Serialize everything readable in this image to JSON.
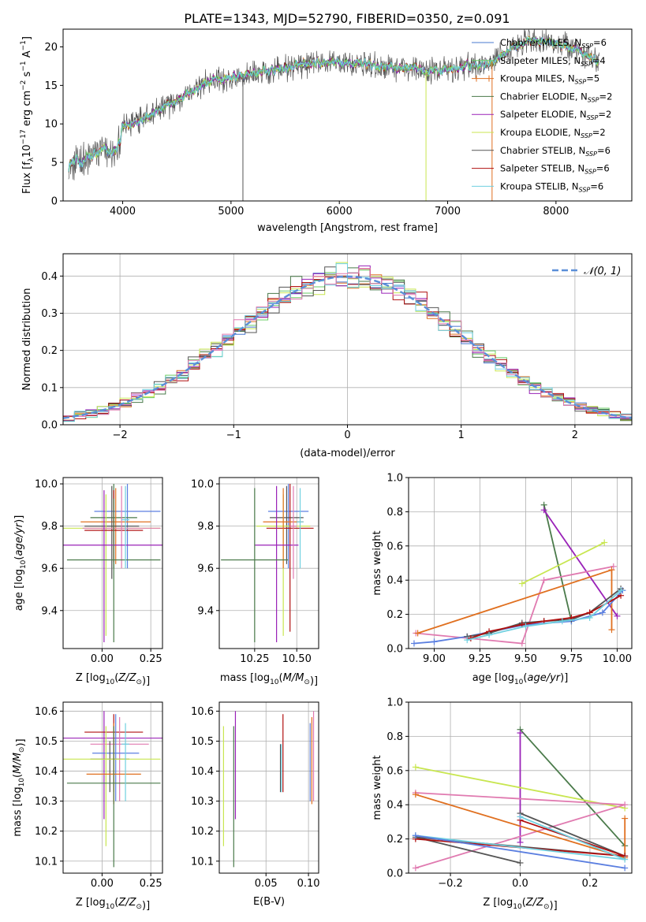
{
  "title": "PLATE=1343, MJD=52790, FIBERID=0350, z=0.091",
  "colors": {
    "chabrier_miles": "#4878cf",
    "salpeter_miles": "#6acc65",
    "kroupa_miles": "#e07020",
    "chabrier_elodie": "#4a7a4a",
    "salpeter_elodie": "#9a22b8",
    "kroupa_elodie": "#c8e650",
    "chabrier_stelib": "#555555",
    "salpeter_stelib": "#b01010",
    "kroupa_stelib": "#6fd0e0",
    "pink": "#e07ab0",
    "blue": "#5b7fe0",
    "normal_curve": "#5b8fd8",
    "grid": "#b0b0b0"
  },
  "chart_data": [
    {
      "id": "spectrum",
      "type": "line",
      "xlabel": "wavelength [Angstrom, rest frame]",
      "ylabel": "Flux [f_λ10^-17 erg cm^-2 s^-1 A^-1]",
      "xlim": [
        3450,
        8700
      ],
      "ylim": [
        0,
        22.3
      ],
      "xticks": [
        4000,
        5000,
        6000,
        7000,
        8000
      ],
      "yticks": [
        0,
        5,
        10,
        15,
        20
      ],
      "grid": false,
      "legend_position": "upper-right",
      "legend": [
        {
          "name": "Chabrier MILES, N",
          "sub": "SSP",
          "suffix": "=6",
          "color": "#4878cf"
        },
        {
          "name": "Salpeter MILES, N",
          "sub": "SSP",
          "suffix": "=4",
          "color": "#6acc65"
        },
        {
          "name": "Kroupa MILES, N",
          "sub": "SSP",
          "suffix": "=5",
          "color": "#e07020"
        },
        {
          "name": "Chabrier ELODIE, N",
          "sub": "SSP",
          "suffix": "=2",
          "color": "#4a7a4a"
        },
        {
          "name": "Salpeter ELODIE, N",
          "sub": "SSP",
          "suffix": "=2",
          "color": "#9a22b8"
        },
        {
          "name": "Kroupa ELODIE, N",
          "sub": "SSP",
          "suffix": "=2",
          "color": "#c8e650"
        },
        {
          "name": "Chabrier STELIB, N",
          "sub": "SSP",
          "suffix": "=6",
          "color": "#555555"
        },
        {
          "name": "Salpeter STELIB, N",
          "sub": "SSP",
          "suffix": "=6",
          "color": "#b01010"
        },
        {
          "name": "Kroupa STELIB, N",
          "sub": "SSP",
          "suffix": "=6",
          "color": "#6fd0e0"
        }
      ],
      "continuum": {
        "x": [
          3500,
          3600,
          3700,
          3800,
          3900,
          3950,
          4000,
          4100,
          4200,
          4300,
          4400,
          4500,
          4600,
          4800,
          5000,
          5200,
          5400,
          5600,
          5800,
          6000,
          6200,
          6400,
          6600,
          6800,
          7000,
          7200,
          7400,
          7600,
          7800,
          8000,
          8200,
          8400
        ],
        "y": [
          4.8,
          5.2,
          5.5,
          6.5,
          6.2,
          6.5,
          9.5,
          10.0,
          11.0,
          11.5,
          12.2,
          13.0,
          14.0,
          15.5,
          16.0,
          16.5,
          17.0,
          17.5,
          17.8,
          18.0,
          17.8,
          17.5,
          17.2,
          17.0,
          17.0,
          17.5,
          18.0,
          20.0,
          21.0,
          20.5,
          19.5,
          18.0
        ]
      },
      "absorption_spikes": [
        {
          "x": 5110,
          "y": 0
        },
        {
          "x": 6800,
          "y": 0
        },
        {
          "x": 7410,
          "y": 0
        }
      ]
    },
    {
      "id": "residuals",
      "type": "step",
      "xlabel": "(data-model)/error",
      "ylabel": "Normed distribution",
      "xlim": [
        -2.5,
        2.5
      ],
      "ylim": [
        0,
        0.46
      ],
      "xticks": [
        -2,
        -1,
        0,
        1,
        2
      ],
      "yticks": [
        0.0,
        0.1,
        0.2,
        0.3,
        0.4
      ],
      "grid": true,
      "legend": [
        {
          "name": "𝒩(0, 1)",
          "style": "dashed",
          "color": "#5b8fd8"
        }
      ],
      "legend_position": "upper-right",
      "bin_width": 0.1,
      "normal_pdf": {
        "mean": 0,
        "sigma": 1
      }
    },
    {
      "id": "z_age",
      "type": "errorbar",
      "xlabel": "Z [log10(Z/Z⊙)]",
      "ylabel": "age [log10(age/yr)]",
      "xlim": [
        -0.2,
        0.31
      ],
      "ylim": [
        9.22,
        10.03
      ],
      "xticks": [
        0.0,
        0.25
      ],
      "yticks": [
        9.4,
        9.6,
        9.8,
        10.0
      ],
      "grid": true,
      "points": [
        {
          "x": 0.13,
          "xerr": 0.17,
          "y": 9.87,
          "ylo": 9.6,
          "yhi": 10.0,
          "color": "#5b7fe0"
        },
        {
          "x": 0.06,
          "xerr": 0.12,
          "y": 9.84,
          "ylo": 9.6,
          "yhi": 10.0,
          "color": "#4a7a4a"
        },
        {
          "x": 0.07,
          "xerr": 0.18,
          "y": 9.82,
          "ylo": 9.62,
          "yhi": 9.98,
          "color": "#e07020"
        },
        {
          "x": 0.05,
          "xerr": 0.14,
          "y": 9.8,
          "ylo": 9.55,
          "yhi": 9.99,
          "color": "#555555"
        },
        {
          "x": 0.02,
          "xerr": 0.28,
          "y": 9.79,
          "ylo": 9.28,
          "yhi": 9.95,
          "color": "#c8e650"
        },
        {
          "x": 0.06,
          "xerr": 0.15,
          "y": 9.78,
          "ylo": 9.63,
          "yhi": 9.97,
          "color": "#b01010"
        },
        {
          "x": 0.1,
          "xerr": 0.2,
          "y": 9.79,
          "ylo": 9.6,
          "yhi": 9.99,
          "color": "#e07ab0"
        },
        {
          "x": 0.01,
          "xerr": 0.3,
          "y": 9.71,
          "ylo": 9.25,
          "yhi": 9.97,
          "color": "#9a22b8"
        },
        {
          "x": 0.06,
          "xerr": 0.24,
          "y": 9.64,
          "ylo": 9.25,
          "yhi": 9.93,
          "color": "#4a7a4a"
        },
        {
          "x": 0.12,
          "xerr": 0.02,
          "y": 9.83,
          "ylo": 9.6,
          "yhi": 9.99,
          "color": "#6fd0e0"
        }
      ]
    },
    {
      "id": "mass_age",
      "type": "errorbar",
      "xlabel": "mass [log10(M/M⊙)]",
      "ylabel": "",
      "xlim": [
        10.04,
        10.63
      ],
      "ylim": [
        9.22,
        10.03
      ],
      "xticks": [
        10.25,
        10.5
      ],
      "yticks": [
        9.4,
        9.6,
        9.8,
        10.0
      ],
      "grid": true,
      "points": [
        {
          "x": 10.45,
          "xerr": 0.12,
          "y": 9.87,
          "ylo": 9.6,
          "yhi": 10.0,
          "color": "#5b7fe0"
        },
        {
          "x": 10.44,
          "xerr": 0.1,
          "y": 9.84,
          "ylo": 9.62,
          "yhi": 9.99,
          "color": "#555555"
        },
        {
          "x": 10.42,
          "xerr": 0.16,
          "y": 9.8,
          "ylo": 9.28,
          "yhi": 9.95,
          "color": "#c8e650"
        },
        {
          "x": 10.46,
          "xerr": 0.14,
          "y": 9.79,
          "ylo": 9.3,
          "yhi": 10.0,
          "color": "#b01010"
        },
        {
          "x": 10.42,
          "xerr": 0.12,
          "y": 9.82,
          "ylo": 9.6,
          "yhi": 9.98,
          "color": "#e07020"
        },
        {
          "x": 10.38,
          "xerr": 0.13,
          "y": 9.71,
          "ylo": 9.25,
          "yhi": 9.99,
          "color": "#9a22b8"
        },
        {
          "x": 10.25,
          "xerr": 0.2,
          "y": 9.64,
          "ylo": 9.25,
          "yhi": 9.98,
          "color": "#4a7a4a"
        },
        {
          "x": 10.48,
          "xerr": 0.02,
          "y": 9.8,
          "ylo": 9.55,
          "yhi": 9.99,
          "color": "#e07ab0"
        },
        {
          "x": 10.52,
          "xerr": 0.02,
          "y": 9.82,
          "ylo": 9.6,
          "yhi": 9.98,
          "color": "#6fd0e0"
        }
      ]
    },
    {
      "id": "age_weight",
      "type": "line",
      "xlabel": "age [log10(age/yr)]",
      "ylabel": "mass weight",
      "xlim": [
        8.86,
        10.08
      ],
      "ylim": [
        0,
        1.0
      ],
      "xticks": [
        9.0,
        9.25,
        9.5,
        9.75,
        10.0
      ],
      "yticks": [
        0.0,
        0.2,
        0.4,
        0.6,
        0.8,
        1.0
      ],
      "grid": true,
      "series": [
        {
          "color": "#4a7a4a",
          "x": [
            9.6,
            9.75
          ],
          "y": [
            0.84,
            0.16
          ]
        },
        {
          "color": "#9a22b8",
          "x": [
            9.6,
            10.0
          ],
          "y": [
            0.81,
            0.19
          ]
        },
        {
          "color": "#c8e650",
          "x": [
            9.48,
            9.93
          ],
          "y": [
            0.38,
            0.62
          ]
        },
        {
          "color": "#e07ab0",
          "x": [
            8.9,
            9.48,
            9.6,
            9.98
          ],
          "y": [
            0.09,
            0.03,
            0.4,
            0.48
          ]
        },
        {
          "color": "#e07020",
          "x": [
            8.91,
            9.97,
            9.97
          ],
          "y": [
            0.09,
            0.46,
            0.11
          ]
        },
        {
          "color": "#5b7fe0",
          "x": [
            8.89,
            9.0,
            9.18,
            9.5,
            9.75,
            9.92,
            10.03
          ],
          "y": [
            0.03,
            0.04,
            0.07,
            0.14,
            0.16,
            0.21,
            0.34
          ]
        },
        {
          "color": "#555555",
          "x": [
            9.18,
            9.3,
            9.48,
            9.6,
            9.75,
            9.85,
            10.02
          ],
          "y": [
            0.07,
            0.09,
            0.15,
            0.16,
            0.17,
            0.21,
            0.35
          ]
        },
        {
          "color": "#b01010",
          "x": [
            9.2,
            9.3,
            9.48,
            9.6,
            9.75,
            9.85,
            10.02
          ],
          "y": [
            0.06,
            0.1,
            0.14,
            0.16,
            0.18,
            0.21,
            0.31
          ]
        },
        {
          "color": "#6fd0e0",
          "x": [
            9.18,
            9.3,
            9.5,
            9.7,
            9.85,
            10.02
          ],
          "y": [
            0.05,
            0.08,
            0.13,
            0.16,
            0.18,
            0.34
          ]
        }
      ]
    },
    {
      "id": "z_mass",
      "type": "errorbar",
      "xlabel": "Z [log10(Z/Z⊙)]",
      "ylabel": "mass [log10(M/M⊙)]",
      "xlim": [
        -0.2,
        0.31
      ],
      "ylim": [
        10.06,
        10.63
      ],
      "xticks": [
        0.0,
        0.25
      ],
      "yticks": [
        10.1,
        10.2,
        10.3,
        10.4,
        10.5,
        10.6
      ],
      "grid": true,
      "points": [
        {
          "x": 0.01,
          "xerr": 0.3,
          "y": 10.51,
          "ylo": 10.24,
          "yhi": 10.6,
          "color": "#9a22b8"
        },
        {
          "x": 0.06,
          "xerr": 0.15,
          "y": 10.53,
          "ylo": 10.33,
          "yhi": 10.59,
          "color": "#b01010"
        },
        {
          "x": 0.09,
          "xerr": 0.15,
          "y": 10.49,
          "ylo": 10.3,
          "yhi": 10.58,
          "color": "#e07ab0"
        },
        {
          "x": 0.07,
          "xerr": 0.12,
          "y": 10.46,
          "ylo": 10.3,
          "yhi": 10.59,
          "color": "#5b7fe0"
        },
        {
          "x": 0.04,
          "xerr": 0.1,
          "y": 10.44,
          "ylo": 10.33,
          "yhi": 10.5,
          "color": "#555555"
        },
        {
          "x": 0.02,
          "xerr": 0.28,
          "y": 10.44,
          "ylo": 10.15,
          "yhi": 10.55,
          "color": "#c8e650"
        },
        {
          "x": 0.06,
          "xerr": 0.14,
          "y": 10.39,
          "ylo": 10.29,
          "yhi": 10.56,
          "color": "#e07020"
        },
        {
          "x": 0.06,
          "xerr": 0.24,
          "y": 10.36,
          "ylo": 10.08,
          "yhi": 10.55,
          "color": "#4a7a4a"
        },
        {
          "x": 0.12,
          "xerr": 0.02,
          "y": 10.49,
          "ylo": 10.3,
          "yhi": 10.56,
          "color": "#6fd0e0"
        }
      ]
    },
    {
      "id": "ebv_mass",
      "type": "errorbar",
      "xlabel": "E(B-V)",
      "ylabel": "",
      "xlim": [
        -0.005,
        0.112
      ],
      "ylim": [
        10.06,
        10.63
      ],
      "xticks": [
        0.05,
        0.1
      ],
      "yticks": [
        10.1,
        10.2,
        10.3,
        10.4,
        10.5,
        10.6
      ],
      "grid": true,
      "points": [
        {
          "x": 0.0,
          "y": 10.43,
          "ylo": 10.15,
          "yhi": 10.55,
          "color": "#c8e650"
        },
        {
          "x": 0.012,
          "y": 10.36,
          "ylo": 10.08,
          "yhi": 10.55,
          "color": "#4a7a4a"
        },
        {
          "x": 0.014,
          "y": 10.51,
          "ylo": 10.24,
          "yhi": 10.6,
          "color": "#9a22b8"
        },
        {
          "x": 0.067,
          "y": 10.44,
          "ylo": 10.33,
          "yhi": 10.49,
          "color": "#555555"
        },
        {
          "x": 0.07,
          "y": 10.53,
          "ylo": 10.33,
          "yhi": 10.59,
          "color": "#b01010"
        },
        {
          "x": 0.068,
          "y": 10.44,
          "ylo": 10.33,
          "yhi": 10.49,
          "color": "#6fd0e0"
        },
        {
          "x": 0.102,
          "y": 10.46,
          "ylo": 10.3,
          "yhi": 10.56,
          "color": "#5b7fe0"
        },
        {
          "x": 0.104,
          "y": 10.39,
          "ylo": 10.29,
          "yhi": 10.58,
          "color": "#e07020"
        },
        {
          "x": 0.106,
          "y": 10.49,
          "ylo": 10.3,
          "yhi": 10.6,
          "color": "#e07ab0"
        }
      ]
    },
    {
      "id": "z_weight",
      "type": "line",
      "xlabel": "Z [log10(Z/Z⊙)]",
      "ylabel": "mass weight",
      "xlim": [
        -0.32,
        0.32
      ],
      "ylim": [
        0,
        1.0
      ],
      "xticks": [
        -0.2,
        0.0,
        0.2
      ],
      "yticks": [
        0.0,
        0.2,
        0.4,
        0.6,
        0.8,
        1.0
      ],
      "grid": true,
      "series": [
        {
          "color": "#4a7a4a",
          "x": [
            0.0,
            0.3
          ],
          "y": [
            0.84,
            0.16
          ]
        },
        {
          "color": "#9a22b8",
          "x": [
            0.0,
            0.0
          ],
          "y": [
            0.82,
            0.18
          ]
        },
        {
          "color": "#c8e650",
          "x": [
            -0.3,
            0.3
          ],
          "y": [
            0.62,
            0.38
          ]
        },
        {
          "color": "#e07ab0",
          "x": [
            -0.3,
            0.3,
            -0.3
          ],
          "y": [
            0.47,
            0.4,
            0.03
          ]
        },
        {
          "color": "#e07020",
          "x": [
            -0.3,
            0.3,
            0.3
          ],
          "y": [
            0.46,
            0.09,
            0.32
          ]
        },
        {
          "color": "#555555",
          "x": [
            0.0,
            0.3,
            -0.3,
            0.0
          ],
          "y": [
            0.35,
            0.1,
            0.21,
            0.06
          ]
        },
        {
          "color": "#b01010",
          "x": [
            0.0,
            0.3,
            -0.3
          ],
          "y": [
            0.31,
            0.1,
            0.2
          ]
        },
        {
          "color": "#6fd0e0",
          "x": [
            0.0,
            0.3,
            -0.3
          ],
          "y": [
            0.33,
            0.08,
            0.22
          ]
        },
        {
          "color": "#5b7fe0",
          "x": [
            -0.3,
            0.3
          ],
          "y": [
            0.22,
            0.03
          ]
        }
      ]
    }
  ]
}
